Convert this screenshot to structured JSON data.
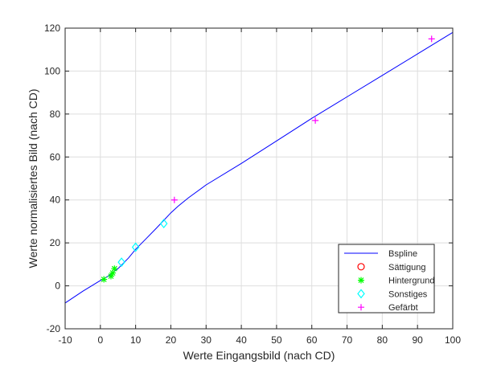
{
  "chart_data": {
    "type": "scatter",
    "xlabel": "Werte Eingangsbild (nach CD)",
    "ylabel": "Werte normalisiertes Bild (nach CD)",
    "xlim": [
      -10,
      100
    ],
    "ylim": [
      -20,
      120
    ],
    "xticks": [
      "-10",
      "0",
      "10",
      "20",
      "30",
      "40",
      "50",
      "60",
      "70",
      "80",
      "90",
      "100"
    ],
    "yticks": [
      "-20",
      "0",
      "20",
      "40",
      "60",
      "80",
      "100",
      "120"
    ],
    "grid": true,
    "legend_position": "bottom-right",
    "colors": {
      "spline": "#0000ff",
      "saettigung": "#ff0000",
      "hintergrund": "#00ff00",
      "sonstiges": "#00ffff",
      "gefaerbt": "#ff00ff",
      "grid": "#dedede",
      "axis": "#262626"
    },
    "spline": {
      "name": "Bspline",
      "x": [
        -10,
        -5,
        0,
        2,
        5,
        8,
        10,
        13,
        16,
        18,
        20,
        22,
        25,
        30,
        40,
        50,
        60,
        70,
        80,
        90,
        100
      ],
      "y": [
        -8,
        -2.5,
        2.5,
        4.3,
        8,
        13,
        17,
        22,
        27,
        30.5,
        34,
        37,
        41,
        47,
        57,
        67.5,
        78,
        88,
        98,
        108,
        118
      ]
    },
    "series": [
      {
        "name": "Sättigung",
        "marker": "circle",
        "x": [],
        "y": []
      },
      {
        "name": "Hintergrund",
        "marker": "star",
        "x": [
          1,
          3,
          3.5,
          4
        ],
        "y": [
          3,
          4.5,
          6,
          8
        ]
      },
      {
        "name": "Sonstiges",
        "marker": "diamond",
        "x": [
          6,
          10,
          18
        ],
        "y": [
          11,
          18,
          29
        ]
      },
      {
        "name": "Gefärbt",
        "marker": "plus",
        "x": [
          21,
          61,
          94
        ],
        "y": [
          40,
          77,
          115
        ]
      }
    ]
  }
}
